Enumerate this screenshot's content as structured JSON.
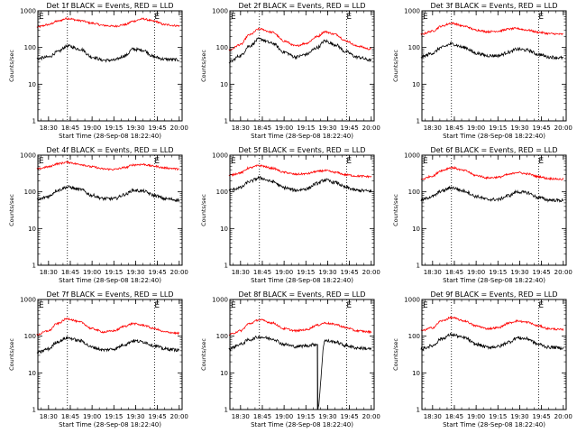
{
  "colors": {
    "black_series": "#000000",
    "red_series": "#ff0000",
    "background": "#ffffff"
  },
  "figure": {
    "xlabel": "Start Time (28-Sep-08 18:22:40)",
    "ylabel": "Counts/sec",
    "x_ticks": [
      "18:30",
      "18:45",
      "19:00",
      "19:15",
      "19:30",
      "19:45",
      "20:00"
    ],
    "y_ticks": [
      "1",
      "10",
      "100",
      "1000"
    ],
    "e_marker": "E"
  },
  "chart_data": [
    {
      "type": "line",
      "detector": "1f",
      "title": "Det 1f BLACK = Events, RED = LLD",
      "x_range": [
        "18:22:40",
        "20:02:00"
      ],
      "y_range": [
        1,
        1000
      ],
      "y_scale": "log",
      "ticks_x": [
        "18:30",
        "18:45",
        "19:00",
        "19:15",
        "19:30",
        "19:45",
        "20:00"
      ],
      "ticks_y": [
        "1",
        "10",
        "100",
        "1000"
      ],
      "markers_x": [
        "18:43",
        "19:43"
      ],
      "series": [
        {
          "color": "red",
          "x": [
            "18:22",
            "18:30",
            "18:36",
            "18:43",
            "18:52",
            "19:00",
            "19:08",
            "19:15",
            "19:23",
            "19:28",
            "19:35",
            "19:43",
            "19:50",
            "20:00"
          ],
          "y": [
            360,
            420,
            520,
            620,
            540,
            460,
            400,
            380,
            420,
            520,
            600,
            520,
            420,
            390
          ]
        },
        {
          "color": "black",
          "x": [
            "18:22",
            "18:30",
            "18:36",
            "18:43",
            "18:52",
            "19:00",
            "19:08",
            "19:15",
            "19:23",
            "19:28",
            "19:35",
            "19:43",
            "19:50",
            "20:00"
          ],
          "y": [
            50,
            55,
            75,
            110,
            90,
            55,
            45,
            45,
            60,
            90,
            85,
            55,
            48,
            46
          ]
        }
      ]
    },
    {
      "type": "line",
      "detector": "2f",
      "title": "Det 2f BLACK = Events, RED = LLD",
      "x_range": [
        "18:22:40",
        "20:02:00"
      ],
      "y_range": [
        1,
        1000
      ],
      "y_scale": "log",
      "ticks_x": [
        "18:30",
        "18:45",
        "19:00",
        "19:15",
        "19:30",
        "19:45",
        "20:00"
      ],
      "ticks_y": [
        "1",
        "10",
        "100",
        "1000"
      ],
      "markers_x": [
        "18:43",
        "19:43"
      ],
      "series": [
        {
          "color": "red",
          "x": [
            "18:22",
            "18:30",
            "18:36",
            "18:43",
            "18:52",
            "19:00",
            "19:08",
            "19:15",
            "19:23",
            "19:28",
            "19:35",
            "19:43",
            "19:50",
            "20:00"
          ],
          "y": [
            85,
            120,
            220,
            320,
            260,
            150,
            110,
            130,
            200,
            270,
            230,
            150,
            110,
            90
          ]
        },
        {
          "color": "black",
          "x": [
            "18:22",
            "18:30",
            "18:36",
            "18:43",
            "18:52",
            "19:00",
            "19:08",
            "19:15",
            "19:23",
            "19:28",
            "19:35",
            "19:43",
            "19:50",
            "20:00"
          ],
          "y": [
            40,
            60,
            110,
            170,
            130,
            75,
            55,
            65,
            100,
            150,
            120,
            75,
            55,
            45
          ]
        }
      ]
    },
    {
      "type": "line",
      "detector": "3f",
      "title": "Det 3f BLACK = Events, RED = LLD",
      "x_range": [
        "18:22:40",
        "20:02:00"
      ],
      "y_range": [
        1,
        1000
      ],
      "y_scale": "log",
      "ticks_x": [
        "18:30",
        "18:45",
        "19:00",
        "19:15",
        "19:30",
        "19:45",
        "20:00"
      ],
      "ticks_y": [
        "1",
        "10",
        "100",
        "1000"
      ],
      "markers_x": [
        "18:43",
        "19:43"
      ],
      "series": [
        {
          "color": "red",
          "x": [
            "18:22",
            "18:30",
            "18:36",
            "18:43",
            "18:52",
            "19:00",
            "19:08",
            "19:15",
            "19:23",
            "19:28",
            "19:35",
            "19:43",
            "19:50",
            "20:00"
          ],
          "y": [
            230,
            280,
            380,
            460,
            380,
            300,
            270,
            280,
            320,
            330,
            300,
            260,
            240,
            230
          ]
        },
        {
          "color": "black",
          "x": [
            "18:22",
            "18:30",
            "18:36",
            "18:43",
            "18:52",
            "19:00",
            "19:08",
            "19:15",
            "19:23",
            "19:28",
            "19:35",
            "19:43",
            "19:50",
            "20:00"
          ],
          "y": [
            55,
            70,
            100,
            125,
            100,
            70,
            60,
            60,
            75,
            90,
            85,
            65,
            55,
            52
          ]
        }
      ]
    },
    {
      "type": "line",
      "detector": "4f",
      "title": "Det 4f BLACK = Events, RED = LLD",
      "x_range": [
        "18:22:40",
        "20:02:00"
      ],
      "y_range": [
        1,
        1000
      ],
      "y_scale": "log",
      "ticks_x": [
        "18:30",
        "18:45",
        "19:00",
        "19:15",
        "19:30",
        "19:45",
        "20:00"
      ],
      "ticks_y": [
        "1",
        "10",
        "100",
        "1000"
      ],
      "markers_x": [
        "18:43",
        "19:43"
      ],
      "series": [
        {
          "color": "red",
          "x": [
            "18:22",
            "18:30",
            "18:36",
            "18:43",
            "18:52",
            "19:00",
            "19:08",
            "19:15",
            "19:23",
            "19:28",
            "19:35",
            "19:43",
            "19:50",
            "20:00"
          ],
          "y": [
            420,
            480,
            580,
            640,
            560,
            480,
            420,
            410,
            460,
            540,
            560,
            500,
            450,
            420
          ]
        },
        {
          "color": "black",
          "x": [
            "18:22",
            "18:30",
            "18:36",
            "18:43",
            "18:52",
            "19:00",
            "19:08",
            "19:15",
            "19:23",
            "19:28",
            "19:35",
            "19:43",
            "19:50",
            "20:00"
          ],
          "y": [
            60,
            75,
            110,
            135,
            115,
            80,
            65,
            65,
            85,
            110,
            105,
            80,
            65,
            60
          ]
        }
      ]
    },
    {
      "type": "line",
      "detector": "5f",
      "title": "Det 5f BLACK = Events, RED = LLD",
      "x_range": [
        "18:22:40",
        "20:02:00"
      ],
      "y_range": [
        1,
        1000
      ],
      "y_scale": "log",
      "ticks_x": [
        "18:30",
        "18:45",
        "19:00",
        "19:15",
        "19:30",
        "19:45",
        "20:00"
      ],
      "ticks_y": [
        "1",
        "10",
        "100",
        "1000"
      ],
      "markers_x": [
        "18:43",
        "19:43"
      ],
      "series": [
        {
          "color": "red",
          "x": [
            "18:22",
            "18:30",
            "18:36",
            "18:43",
            "18:52",
            "19:00",
            "19:08",
            "19:15",
            "19:23",
            "19:28",
            "19:35",
            "19:43",
            "19:50",
            "20:00"
          ],
          "y": [
            280,
            330,
            450,
            520,
            440,
            340,
            300,
            310,
            360,
            380,
            340,
            290,
            270,
            260
          ]
        },
        {
          "color": "black",
          "x": [
            "18:22",
            "18:30",
            "18:36",
            "18:43",
            "18:52",
            "19:00",
            "19:08",
            "19:15",
            "19:23",
            "19:28",
            "19:35",
            "19:43",
            "19:50",
            "20:00"
          ],
          "y": [
            110,
            130,
            190,
            240,
            190,
            130,
            110,
            120,
            170,
            210,
            180,
            130,
            110,
            105
          ]
        }
      ]
    },
    {
      "type": "line",
      "detector": "6f",
      "title": "Det 6f BLACK = Events, RED = LLD",
      "x_range": [
        "18:22:40",
        "20:02:00"
      ],
      "y_range": [
        1,
        1000
      ],
      "y_scale": "log",
      "ticks_x": [
        "18:30",
        "18:45",
        "19:00",
        "19:15",
        "19:30",
        "19:45",
        "20:00"
      ],
      "ticks_y": [
        "1",
        "10",
        "100",
        "1000"
      ],
      "markers_x": [
        "18:43",
        "19:43"
      ],
      "series": [
        {
          "color": "red",
          "x": [
            "18:22",
            "18:30",
            "18:36",
            "18:43",
            "18:52",
            "19:00",
            "19:08",
            "19:15",
            "19:23",
            "19:28",
            "19:35",
            "19:43",
            "19:50",
            "20:00"
          ],
          "y": [
            220,
            270,
            380,
            460,
            380,
            280,
            240,
            250,
            300,
            340,
            310,
            260,
            230,
            220
          ]
        },
        {
          "color": "black",
          "x": [
            "18:22",
            "18:30",
            "18:36",
            "18:43",
            "18:52",
            "19:00",
            "19:08",
            "19:15",
            "19:23",
            "19:28",
            "19:35",
            "19:43",
            "19:50",
            "20:00"
          ],
          "y": [
            60,
            75,
            105,
            130,
            105,
            75,
            62,
            62,
            80,
            100,
            95,
            70,
            60,
            58
          ]
        }
      ]
    },
    {
      "type": "line",
      "detector": "7f",
      "title": "Det 7f BLACK = Events, RED = LLD",
      "x_range": [
        "18:22:40",
        "20:02:00"
      ],
      "y_range": [
        1,
        1000
      ],
      "y_scale": "log",
      "ticks_x": [
        "18:30",
        "18:45",
        "19:00",
        "19:15",
        "19:30",
        "19:45",
        "20:00"
      ],
      "ticks_y": [
        "1",
        "10",
        "100",
        "1000"
      ],
      "markers_x": [
        "18:43",
        "19:43"
      ],
      "series": [
        {
          "color": "red",
          "x": [
            "18:22",
            "18:30",
            "18:36",
            "18:43",
            "18:52",
            "19:00",
            "19:08",
            "19:15",
            "19:23",
            "19:28",
            "19:35",
            "19:43",
            "19:50",
            "20:00"
          ],
          "y": [
            110,
            140,
            220,
            300,
            240,
            160,
            130,
            140,
            190,
            220,
            200,
            160,
            130,
            120
          ]
        },
        {
          "color": "black",
          "x": [
            "18:22",
            "18:30",
            "18:36",
            "18:43",
            "18:52",
            "19:00",
            "19:08",
            "19:15",
            "19:23",
            "19:28",
            "19:35",
            "19:43",
            "19:50",
            "20:00"
          ],
          "y": [
            35,
            45,
            70,
            90,
            75,
            50,
            42,
            45,
            60,
            75,
            70,
            55,
            45,
            42
          ]
        }
      ]
    },
    {
      "type": "line",
      "detector": "8f",
      "title": "Det 8f BLACK = Events, RED = LLD",
      "x_range": [
        "18:22:40",
        "20:02:00"
      ],
      "y_range": [
        1,
        1000
      ],
      "y_scale": "log",
      "ticks_x": [
        "18:30",
        "18:45",
        "19:00",
        "19:15",
        "19:30",
        "19:45",
        "20:00"
      ],
      "ticks_y": [
        "1",
        "10",
        "100",
        "1000"
      ],
      "markers_x": [
        "18:43",
        "19:43"
      ],
      "series": [
        {
          "color": "red",
          "x": [
            "18:22",
            "18:30",
            "18:36",
            "18:43",
            "18:52",
            "19:00",
            "19:08",
            "19:15",
            "19:23",
            "19:28",
            "19:35",
            "19:43",
            "19:50",
            "20:00"
          ],
          "y": [
            110,
            140,
            220,
            280,
            230,
            160,
            140,
            150,
            200,
            230,
            210,
            170,
            140,
            130
          ]
        },
        {
          "color": "black",
          "x": [
            "18:22",
            "18:30",
            "18:36",
            "18:43",
            "18:52",
            "19:00",
            "19:08",
            "19:15",
            "19:22",
            "19:23",
            "19:28",
            "19:35",
            "19:43",
            "19:50",
            "20:00"
          ],
          "y": [
            45,
            60,
            80,
            95,
            85,
            60,
            52,
            55,
            60,
            1,
            75,
            70,
            55,
            48,
            45
          ]
        }
      ]
    },
    {
      "type": "line",
      "detector": "9f",
      "title": "Det 9f BLACK = Events, RED = LLD",
      "x_range": [
        "18:22:40",
        "20:02:00"
      ],
      "y_range": [
        1,
        1000
      ],
      "y_scale": "log",
      "ticks_x": [
        "18:30",
        "18:45",
        "19:00",
        "19:15",
        "19:30",
        "19:45",
        "20:00"
      ],
      "ticks_y": [
        "1",
        "10",
        "100",
        "1000"
      ],
      "markers_x": [
        "18:43",
        "19:43"
      ],
      "series": [
        {
          "color": "red",
          "x": [
            "18:22",
            "18:30",
            "18:36",
            "18:43",
            "18:52",
            "19:00",
            "19:08",
            "19:15",
            "19:23",
            "19:28",
            "19:35",
            "19:43",
            "19:50",
            "20:00"
          ],
          "y": [
            140,
            170,
            260,
            320,
            260,
            190,
            160,
            170,
            230,
            260,
            240,
            190,
            160,
            150
          ]
        },
        {
          "color": "black",
          "x": [
            "18:22",
            "18:30",
            "18:36",
            "18:43",
            "18:52",
            "19:00",
            "19:08",
            "19:15",
            "19:23",
            "19:28",
            "19:35",
            "19:43",
            "19:50",
            "20:00"
          ],
          "y": [
            45,
            55,
            85,
            110,
            90,
            60,
            50,
            52,
            70,
            90,
            85,
            60,
            50,
            48
          ]
        }
      ]
    }
  ]
}
